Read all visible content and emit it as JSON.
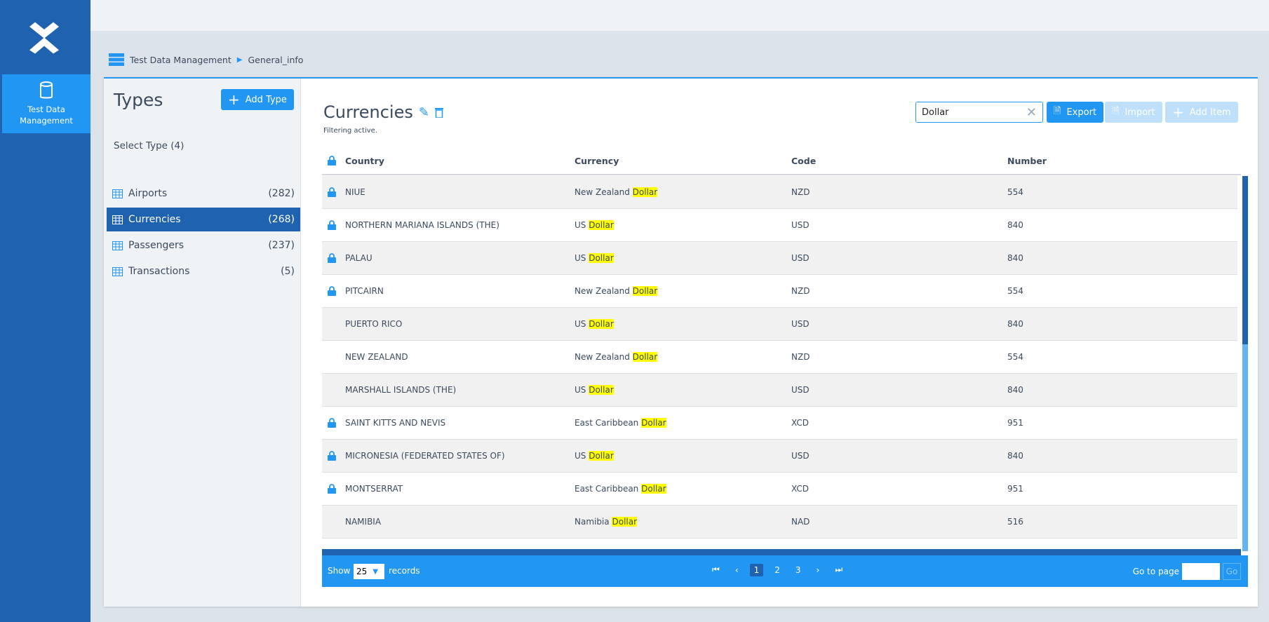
{
  "nav": {
    "item_label": "Test Data Management"
  },
  "breadcrumb": {
    "root": "Test Data Management",
    "current": "General_info"
  },
  "types": {
    "title": "Types",
    "add_label": "Add Type",
    "select_label": "Select Type (4)",
    "items": [
      {
        "label": "Airports",
        "count": "(282)"
      },
      {
        "label": "Currencies",
        "count": "(268)",
        "active": true
      },
      {
        "label": "Passengers",
        "count": "(237)"
      },
      {
        "label": "Transactions",
        "count": "(5)"
      }
    ]
  },
  "main": {
    "title": "Currencies",
    "filter_status": "Filtering active.",
    "search_value": "Dollar",
    "export_label": "Export",
    "import_label": "Import",
    "add_item_label": "Add Item"
  },
  "table": {
    "columns": [
      "Country",
      "Currency",
      "Code",
      "Number"
    ],
    "rows": [
      {
        "locked": true,
        "country": "NIUE",
        "currency_prefix": "New Zealand ",
        "match": "Dollar",
        "code": "NZD",
        "number": "554"
      },
      {
        "locked": true,
        "country": "NORTHERN MARIANA ISLANDS (THE)",
        "currency_prefix": "US ",
        "match": "Dollar",
        "code": "USD",
        "number": "840"
      },
      {
        "locked": true,
        "country": "PALAU",
        "currency_prefix": "US ",
        "match": "Dollar",
        "code": "USD",
        "number": "840"
      },
      {
        "locked": true,
        "country": "PITCAIRN",
        "currency_prefix": "New Zealand ",
        "match": "Dollar",
        "code": "NZD",
        "number": "554"
      },
      {
        "locked": false,
        "country": "PUERTO RICO",
        "currency_prefix": "US ",
        "match": "Dollar",
        "code": "USD",
        "number": "840"
      },
      {
        "locked": false,
        "country": "NEW ZEALAND",
        "currency_prefix": "New Zealand ",
        "match": "Dollar",
        "code": "NZD",
        "number": "554"
      },
      {
        "locked": false,
        "country": "MARSHALL ISLANDS (THE)",
        "currency_prefix": "US ",
        "match": "Dollar",
        "code": "USD",
        "number": "840"
      },
      {
        "locked": true,
        "country": "SAINT KITTS AND NEVIS",
        "currency_prefix": "East Caribbean ",
        "match": "Dollar",
        "code": "XCD",
        "number": "951"
      },
      {
        "locked": true,
        "country": "MICRONESIA (FEDERATED STATES OF)",
        "currency_prefix": "US ",
        "match": "Dollar",
        "code": "USD",
        "number": "840"
      },
      {
        "locked": true,
        "country": "MONTSERRAT",
        "currency_prefix": "East Caribbean ",
        "match": "Dollar",
        "code": "XCD",
        "number": "951"
      },
      {
        "locked": false,
        "country": "NAMIBIA",
        "currency_prefix": "Namibia ",
        "match": "Dollar",
        "code": "NAD",
        "number": "516"
      }
    ]
  },
  "footer": {
    "show_label": "Show",
    "page_size": "25",
    "records_label": "records",
    "pages": [
      "1",
      "2",
      "3"
    ],
    "current_page": "1",
    "goto_label": "Go to page",
    "go_label": "Go"
  },
  "colors": {
    "nav": "#1f62b0",
    "accent": "#2196f3",
    "highlight": "#ffff00"
  }
}
